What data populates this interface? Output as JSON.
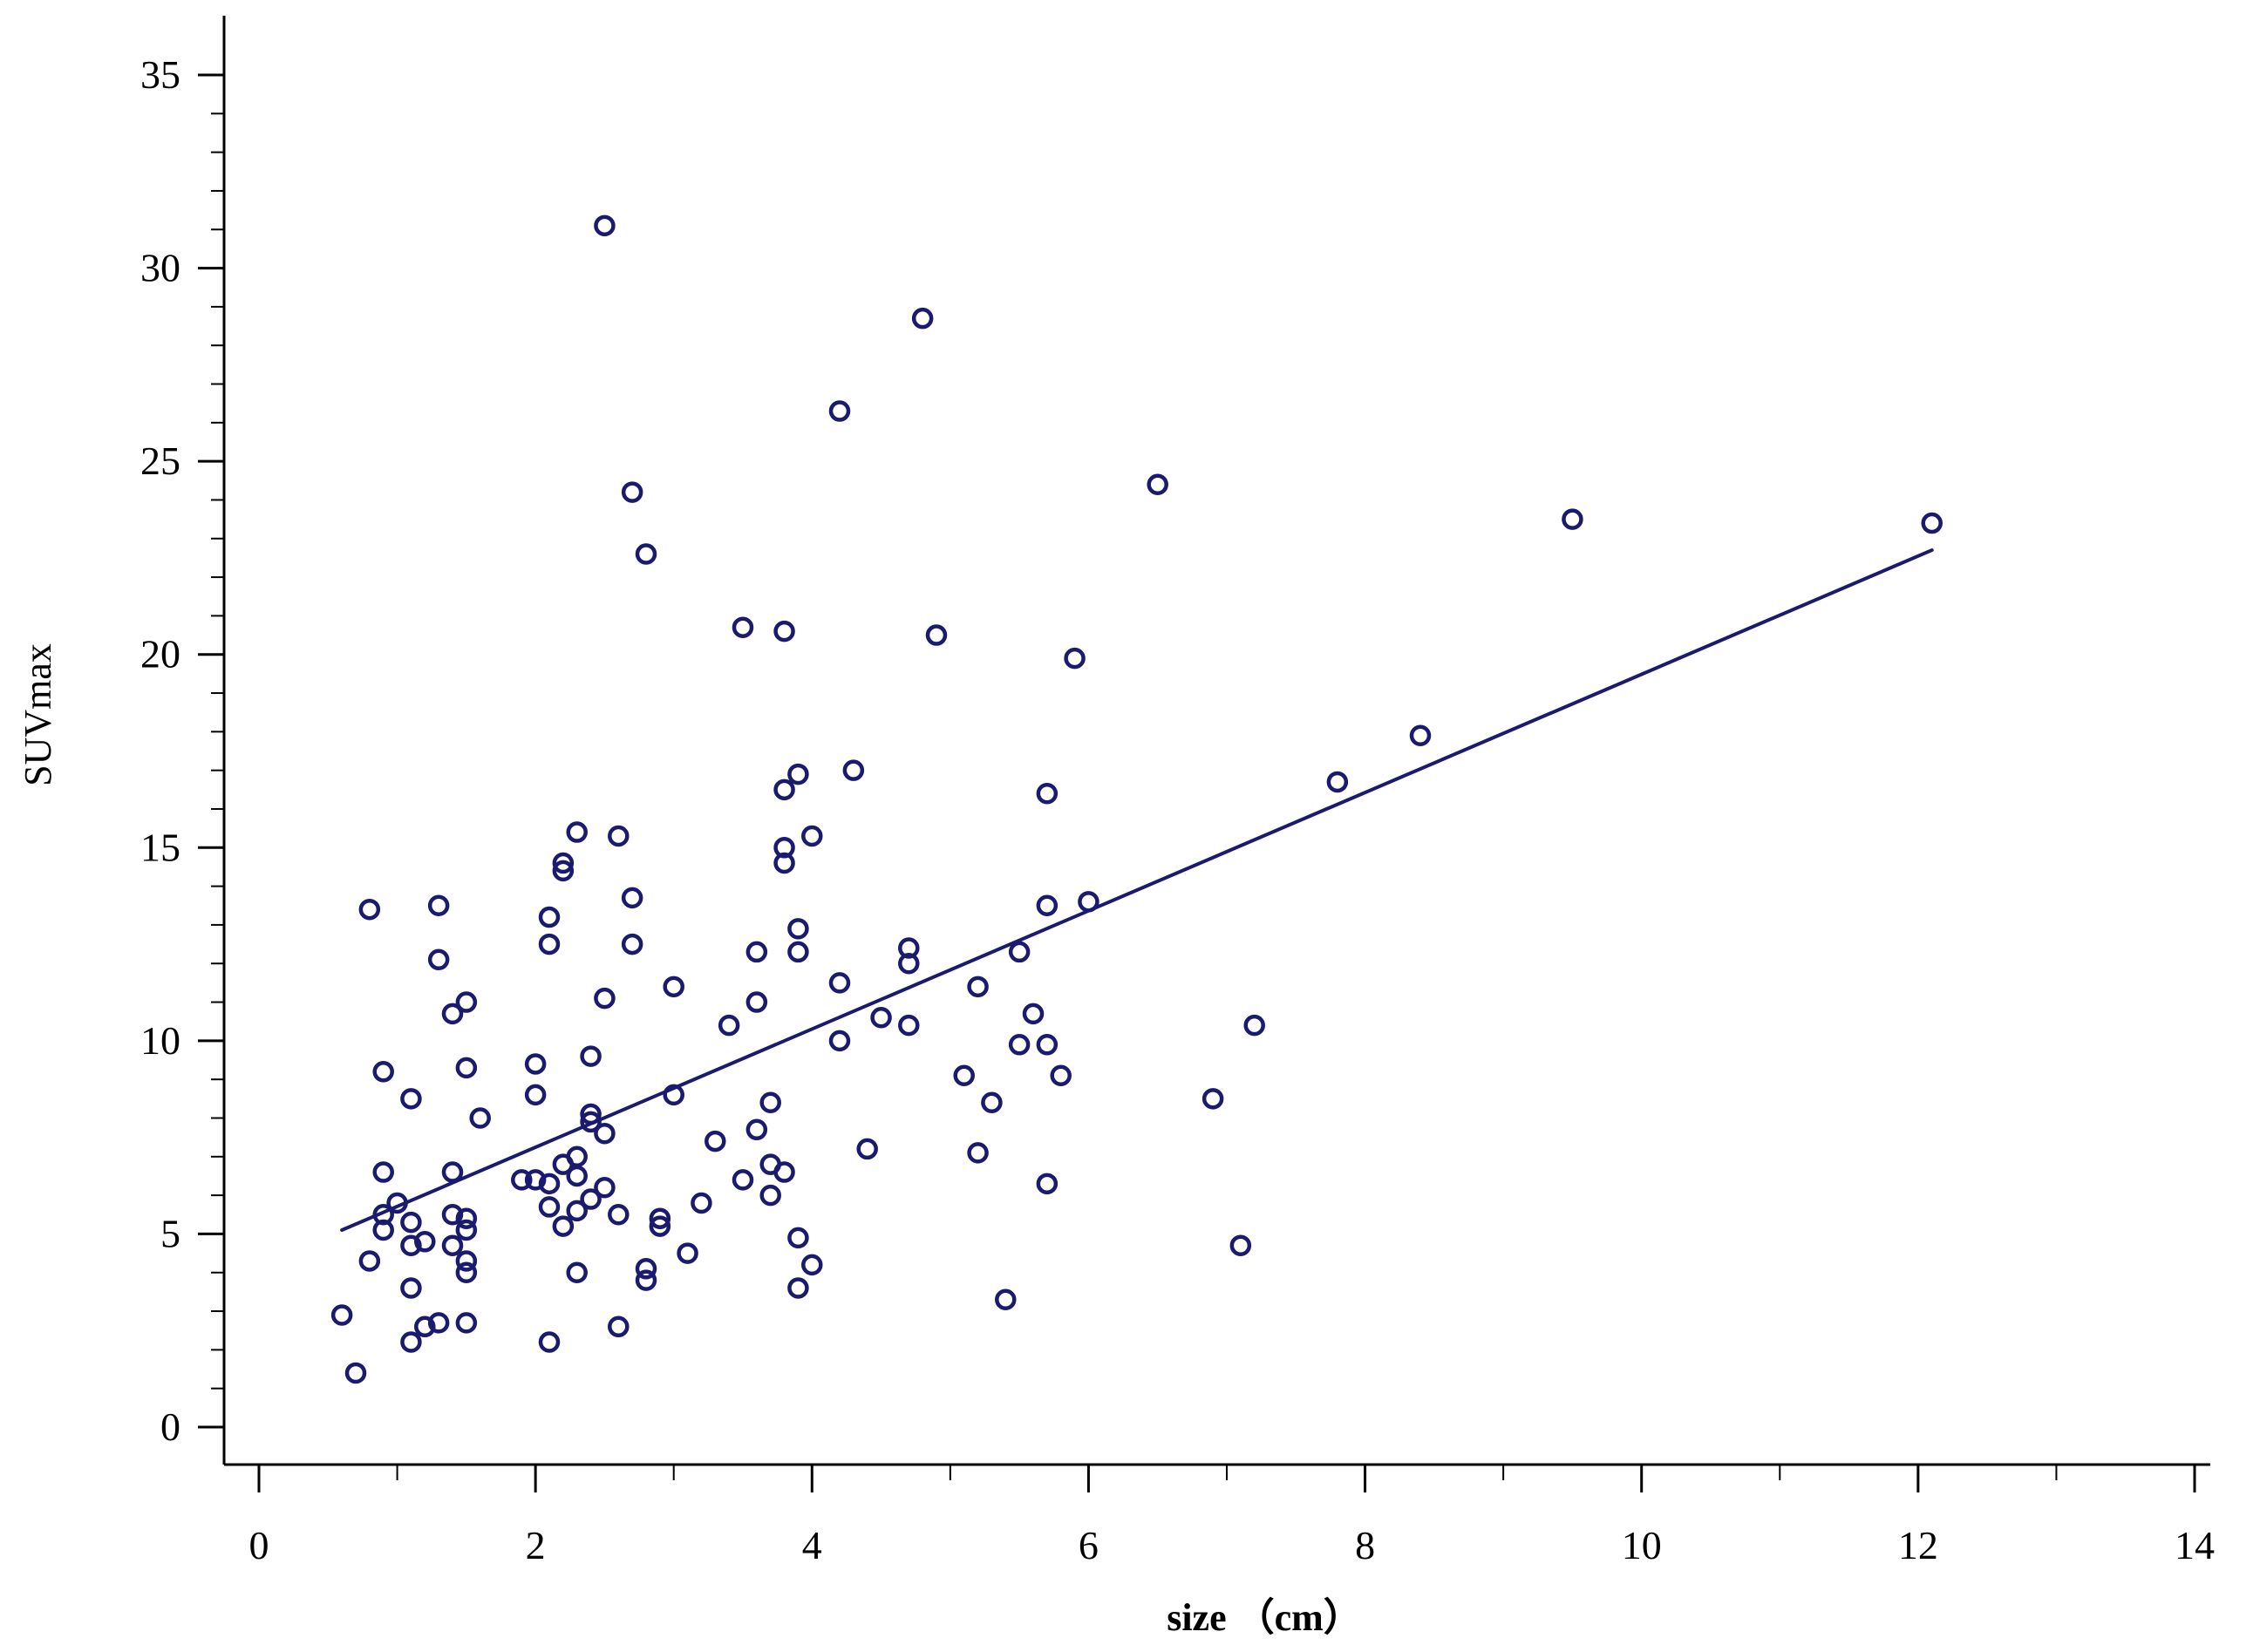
{
  "chart_data": {
    "type": "scatter",
    "title": "",
    "xlabel": "size （cm）",
    "ylabel": "SUVmax",
    "xlim": [
      0,
      14
    ],
    "ylim": [
      0,
      35
    ],
    "x_ticks": [
      "0",
      "2",
      "4",
      "6",
      "8",
      "10",
      "12",
      "14"
    ],
    "y_ticks": [
      "0",
      "5",
      "10",
      "15",
      "20",
      "25",
      "30",
      "35"
    ],
    "grid": false,
    "legend": "none",
    "colors": {
      "points": "#1a1a6e",
      "fit_line": "#1a1a6e",
      "axes": "#000000"
    },
    "fit_line": {
      "type": "linear",
      "x": [
        0.6,
        12.1
      ],
      "y": [
        5.1,
        22.7
      ]
    },
    "points": [
      {
        "x": 0.6,
        "y": 2.9
      },
      {
        "x": 0.7,
        "y": 1.4
      },
      {
        "x": 0.8,
        "y": 13.4
      },
      {
        "x": 0.8,
        "y": 4.3
      },
      {
        "x": 0.9,
        "y": 9.2
      },
      {
        "x": 0.9,
        "y": 6.6
      },
      {
        "x": 0.9,
        "y": 5.5
      },
      {
        "x": 0.9,
        "y": 5.1
      },
      {
        "x": 1.0,
        "y": 5.8
      },
      {
        "x": 1.1,
        "y": 8.5
      },
      {
        "x": 1.1,
        "y": 5.3
      },
      {
        "x": 1.1,
        "y": 4.7
      },
      {
        "x": 1.1,
        "y": 3.6
      },
      {
        "x": 1.1,
        "y": 2.2
      },
      {
        "x": 1.2,
        "y": 4.8
      },
      {
        "x": 1.2,
        "y": 2.6
      },
      {
        "x": 1.3,
        "y": 13.5
      },
      {
        "x": 1.3,
        "y": 12.1
      },
      {
        "x": 1.3,
        "y": 2.7
      },
      {
        "x": 1.4,
        "y": 10.7
      },
      {
        "x": 1.4,
        "y": 6.6
      },
      {
        "x": 1.4,
        "y": 5.5
      },
      {
        "x": 1.4,
        "y": 4.7
      },
      {
        "x": 1.5,
        "y": 11.0
      },
      {
        "x": 1.5,
        "y": 9.3
      },
      {
        "x": 1.5,
        "y": 5.4
      },
      {
        "x": 1.5,
        "y": 5.1
      },
      {
        "x": 1.5,
        "y": 4.3
      },
      {
        "x": 1.5,
        "y": 4.0
      },
      {
        "x": 1.5,
        "y": 2.7
      },
      {
        "x": 1.6,
        "y": 8.0
      },
      {
        "x": 1.9,
        "y": 6.4
      },
      {
        "x": 2.0,
        "y": 9.4
      },
      {
        "x": 2.0,
        "y": 8.6
      },
      {
        "x": 2.0,
        "y": 6.4
      },
      {
        "x": 2.1,
        "y": 13.2
      },
      {
        "x": 2.1,
        "y": 12.5
      },
      {
        "x": 2.1,
        "y": 6.3
      },
      {
        "x": 2.1,
        "y": 5.7
      },
      {
        "x": 2.1,
        "y": 2.2
      },
      {
        "x": 2.2,
        "y": 14.6
      },
      {
        "x": 2.2,
        "y": 14.4
      },
      {
        "x": 2.2,
        "y": 6.8
      },
      {
        "x": 2.2,
        "y": 5.2
      },
      {
        "x": 2.3,
        "y": 15.4
      },
      {
        "x": 2.3,
        "y": 7.0
      },
      {
        "x": 2.3,
        "y": 6.5
      },
      {
        "x": 2.3,
        "y": 5.6
      },
      {
        "x": 2.3,
        "y": 4.0
      },
      {
        "x": 2.4,
        "y": 9.6
      },
      {
        "x": 2.4,
        "y": 8.1
      },
      {
        "x": 2.4,
        "y": 7.9
      },
      {
        "x": 2.4,
        "y": 5.9
      },
      {
        "x": 2.5,
        "y": 31.1
      },
      {
        "x": 2.5,
        "y": 11.1
      },
      {
        "x": 2.5,
        "y": 7.6
      },
      {
        "x": 2.5,
        "y": 6.2
      },
      {
        "x": 2.6,
        "y": 15.3
      },
      {
        "x": 2.6,
        "y": 5.5
      },
      {
        "x": 2.6,
        "y": 2.6
      },
      {
        "x": 2.7,
        "y": 24.2
      },
      {
        "x": 2.7,
        "y": 13.7
      },
      {
        "x": 2.7,
        "y": 12.5
      },
      {
        "x": 2.8,
        "y": 22.6
      },
      {
        "x": 2.8,
        "y": 4.1
      },
      {
        "x": 2.8,
        "y": 3.8
      },
      {
        "x": 2.9,
        "y": 5.4
      },
      {
        "x": 2.9,
        "y": 5.2
      },
      {
        "x": 3.0,
        "y": 11.4
      },
      {
        "x": 3.0,
        "y": 8.6
      },
      {
        "x": 3.1,
        "y": 4.5
      },
      {
        "x": 3.2,
        "y": 5.8
      },
      {
        "x": 3.3,
        "y": 7.4
      },
      {
        "x": 3.4,
        "y": 10.4
      },
      {
        "x": 3.5,
        "y": 20.7
      },
      {
        "x": 3.5,
        "y": 6.4
      },
      {
        "x": 3.6,
        "y": 12.3
      },
      {
        "x": 3.6,
        "y": 11.0
      },
      {
        "x": 3.6,
        "y": 7.7
      },
      {
        "x": 3.7,
        "y": 8.4
      },
      {
        "x": 3.7,
        "y": 6.8
      },
      {
        "x": 3.7,
        "y": 6.0
      },
      {
        "x": 3.8,
        "y": 20.6
      },
      {
        "x": 3.8,
        "y": 16.5
      },
      {
        "x": 3.8,
        "y": 15.0
      },
      {
        "x": 3.8,
        "y": 14.6
      },
      {
        "x": 3.8,
        "y": 6.6
      },
      {
        "x": 3.9,
        "y": 16.9
      },
      {
        "x": 3.9,
        "y": 12.9
      },
      {
        "x": 3.9,
        "y": 12.3
      },
      {
        "x": 3.9,
        "y": 4.9
      },
      {
        "x": 3.9,
        "y": 3.6
      },
      {
        "x": 4.0,
        "y": 15.3
      },
      {
        "x": 4.0,
        "y": 4.2
      },
      {
        "x": 4.2,
        "y": 26.3
      },
      {
        "x": 4.2,
        "y": 11.5
      },
      {
        "x": 4.2,
        "y": 10.0
      },
      {
        "x": 4.3,
        "y": 17.0
      },
      {
        "x": 4.4,
        "y": 7.2
      },
      {
        "x": 4.5,
        "y": 10.6
      },
      {
        "x": 4.7,
        "y": 12.4
      },
      {
        "x": 4.7,
        "y": 12.0
      },
      {
        "x": 4.7,
        "y": 10.4
      },
      {
        "x": 4.8,
        "y": 28.7
      },
      {
        "x": 4.9,
        "y": 20.5
      },
      {
        "x": 5.1,
        "y": 9.1
      },
      {
        "x": 5.2,
        "y": 11.4
      },
      {
        "x": 5.2,
        "y": 7.1
      },
      {
        "x": 5.3,
        "y": 8.4
      },
      {
        "x": 5.4,
        "y": 3.3
      },
      {
        "x": 5.5,
        "y": 12.3
      },
      {
        "x": 5.5,
        "y": 9.9
      },
      {
        "x": 5.6,
        "y": 10.7
      },
      {
        "x": 5.7,
        "y": 16.4
      },
      {
        "x": 5.7,
        "y": 13.5
      },
      {
        "x": 5.7,
        "y": 9.9
      },
      {
        "x": 5.7,
        "y": 6.3
      },
      {
        "x": 5.8,
        "y": 9.1
      },
      {
        "x": 5.9,
        "y": 19.9
      },
      {
        "x": 6.0,
        "y": 13.6
      },
      {
        "x": 6.5,
        "y": 24.4
      },
      {
        "x": 6.9,
        "y": 8.5
      },
      {
        "x": 7.1,
        "y": 4.7
      },
      {
        "x": 7.2,
        "y": 10.4
      },
      {
        "x": 7.8,
        "y": 16.7
      },
      {
        "x": 8.4,
        "y": 17.9
      },
      {
        "x": 9.5,
        "y": 23.5
      },
      {
        "x": 12.1,
        "y": 23.4
      }
    ]
  }
}
